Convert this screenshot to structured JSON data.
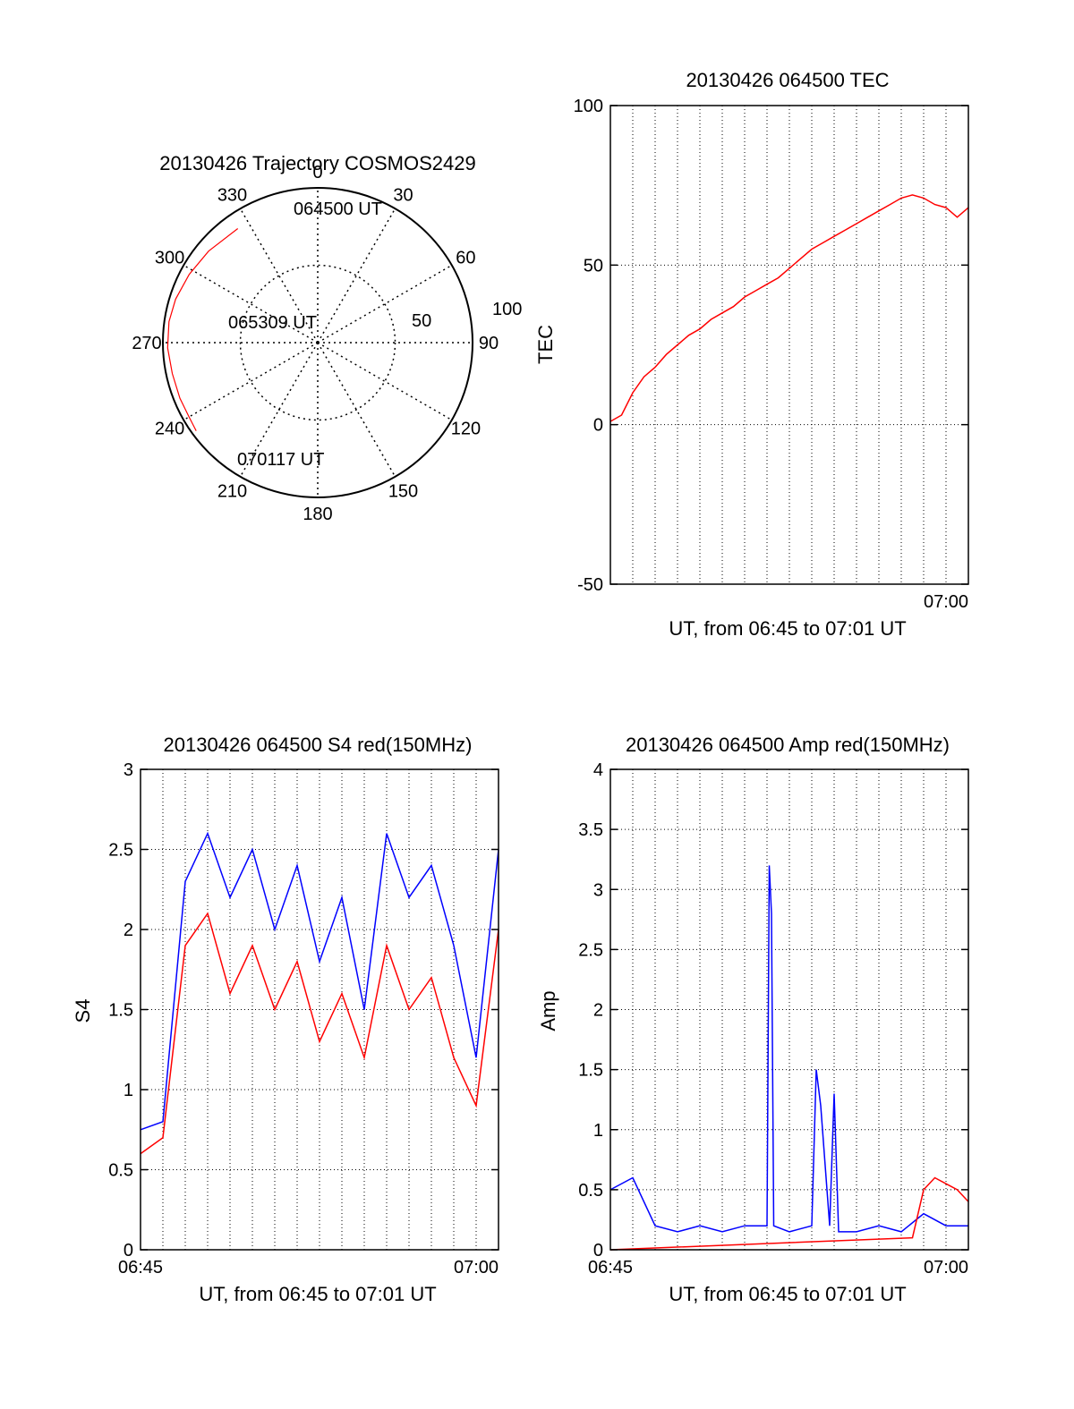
{
  "colors": {
    "red": "#ff0000",
    "blue": "#0000ff",
    "axis": "#000000",
    "grid": "#000000"
  },
  "chart_data": [
    {
      "id": "trajectory",
      "type": "polar",
      "title": "20130426 Trajectory COSMOS2429",
      "angle_labels": [
        "0",
        "30",
        "60",
        "90",
        "120",
        "150",
        "180",
        "210",
        "240",
        "270",
        "300",
        "330"
      ],
      "radial_labels": [
        "50",
        "100"
      ],
      "rlim": [
        0,
        100
      ],
      "annotations": [
        "064500 UT",
        "065309 UT",
        "070117 UT"
      ],
      "track": {
        "name": "",
        "color": "#ff0000",
        "azimuth_deg": [
          325,
          310,
          298,
          287,
          278,
          268,
          258,
          248,
          240,
          234
        ],
        "radius": [
          90,
          92,
          94,
          96,
          97,
          97,
          96,
          96,
          96,
          97
        ]
      }
    },
    {
      "id": "tec",
      "type": "line",
      "title": "20130426 064500 TEC",
      "xlabel": "UT, from 06:45 to 07:01 UT",
      "ylabel": "TEC",
      "xlim": [
        0,
        16
      ],
      "ylim": [
        -50,
        100
      ],
      "yticks": [
        -50,
        0,
        50,
        100
      ],
      "xticks": [
        {
          "value": 15,
          "label": "07:00"
        }
      ],
      "grid": true,
      "series": [
        {
          "name": "",
          "color": "#ff0000",
          "x": [
            0,
            0.5,
            1,
            1.5,
            2,
            2.5,
            3,
            3.5,
            4,
            4.5,
            5,
            5.5,
            6,
            6.5,
            7,
            7.5,
            8,
            8.5,
            9,
            9.5,
            10,
            10.5,
            11,
            11.5,
            12,
            12.5,
            13,
            13.5,
            14,
            14.5,
            15,
            15.5,
            16
          ],
          "y": [
            1,
            3,
            10,
            15,
            18,
            22,
            25,
            28,
            30,
            33,
            35,
            37,
            40,
            42,
            44,
            46,
            49,
            52,
            55,
            57,
            59,
            61,
            63,
            65,
            67,
            69,
            71,
            72,
            71,
            69,
            68,
            65,
            68
          ]
        }
      ]
    },
    {
      "id": "s4",
      "type": "line",
      "title": "20130426 064500 S4 red(150MHz)",
      "xlabel": "UT, from 06:45 to 07:01 UT",
      "ylabel": "S4",
      "xlim": [
        0,
        16
      ],
      "ylim": [
        0,
        3
      ],
      "yticks": [
        0,
        0.5,
        1,
        1.5,
        2,
        2.5,
        3
      ],
      "xticks": [
        {
          "value": 0,
          "label": "06:45"
        },
        {
          "value": 15,
          "label": "07:00"
        }
      ],
      "grid": true,
      "series": [
        {
          "name": "",
          "color": "#0000ff",
          "x": [
            0,
            1,
            2,
            3,
            4,
            5,
            6,
            7,
            8,
            9,
            10,
            11,
            12,
            13,
            14,
            15,
            16
          ],
          "y": [
            0.75,
            0.8,
            2.3,
            2.6,
            2.2,
            2.5,
            2.0,
            2.4,
            1.8,
            2.2,
            1.5,
            2.6,
            2.2,
            2.4,
            1.9,
            1.2,
            2.5
          ]
        },
        {
          "name": "",
          "color": "#ff0000",
          "x": [
            0,
            1,
            2,
            3,
            4,
            5,
            6,
            7,
            8,
            9,
            10,
            11,
            12,
            13,
            14,
            15,
            16
          ],
          "y": [
            0.6,
            0.7,
            1.9,
            2.1,
            1.6,
            1.9,
            1.5,
            1.8,
            1.3,
            1.6,
            1.2,
            1.9,
            1.5,
            1.7,
            1.2,
            0.9,
            2.0
          ]
        }
      ]
    },
    {
      "id": "amp",
      "type": "line",
      "title": "20130426 064500 Amp red(150MHz)",
      "xlabel": "UT, from 06:45 to 07:01 UT",
      "ylabel": "Amp",
      "xlim": [
        0,
        16
      ],
      "ylim": [
        0,
        4
      ],
      "yticks": [
        0,
        0.5,
        1,
        1.5,
        2,
        2.5,
        3,
        3.5,
        4
      ],
      "xticks": [
        {
          "value": 0,
          "label": "06:45"
        },
        {
          "value": 15,
          "label": "07:00"
        }
      ],
      "grid": true,
      "series": [
        {
          "name": "",
          "color": "#0000ff",
          "x": [
            0,
            1,
            2,
            3,
            4,
            5,
            6,
            7,
            7.1,
            7.2,
            7.3,
            8,
            9,
            9.2,
            9.4,
            9.8,
            10,
            10.2,
            11,
            12,
            13,
            14,
            15,
            16
          ],
          "y": [
            0.5,
            0.6,
            0.2,
            0.15,
            0.2,
            0.15,
            0.2,
            0.2,
            3.2,
            2.8,
            0.2,
            0.15,
            0.2,
            1.5,
            1.2,
            0.2,
            1.3,
            0.15,
            0.15,
            0.2,
            0.15,
            0.3,
            0.2,
            0.2
          ]
        },
        {
          "name": "",
          "color": "#ff0000",
          "x": [
            0,
            13.5,
            14,
            14.5,
            15,
            15.5,
            16
          ],
          "y": [
            0,
            0.1,
            0.5,
            0.6,
            0.55,
            0.5,
            0.4
          ]
        }
      ]
    }
  ]
}
